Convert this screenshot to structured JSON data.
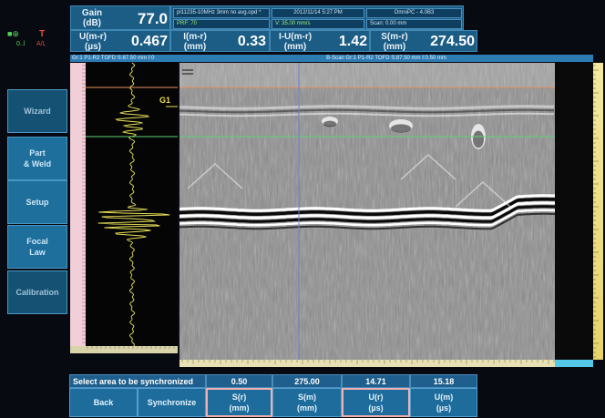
{
  "header": {
    "gain_label": "Gain",
    "gain_unit": "(dB)",
    "gain_value": "77.0",
    "ur_label": "U(m-r)",
    "ur_unit": "(µs)",
    "ur_value": "0.467",
    "im_label": "I(m-r)",
    "im_unit": "(mm)",
    "im_value": "0.33",
    "ium_label": "I-U(m-r)",
    "ium_unit": "(mm)",
    "ium_value": "1.42",
    "sm_label": "S(m-r)",
    "sm_unit": "(mm)",
    "sm_value": "274.50",
    "file_name": "pl11235-10MHz 3mm no avg.opd *",
    "prf": "PRF: 70",
    "velocity": "V: 35.00 mm/s",
    "datetime": "2012/11/14 5:27 PM",
    "app": "OmniPC - 4.0B3",
    "scan": "Scan: 0.00 mm"
  },
  "scan_titles": {
    "ascan": "Gr:1 P1-R2 TOFD S:87.50 mm I:0",
    "bscan": "B-Scan Gr:1 P1-R2 TOFD S:87.50 mm I:0.50 mm"
  },
  "gate_label": "G1",
  "side_menu": [
    {
      "label": "Wizard",
      "dark": true
    },
    {
      "label": "Part\n& Weld",
      "dark": false
    },
    {
      "label": "Setup",
      "dark": false
    },
    {
      "label": "Focal\nLaw",
      "dark": false
    },
    {
      "label": "Calibration",
      "dark": true
    }
  ],
  "bottom": {
    "sync_prompt": "Select area to be synchronized",
    "values": [
      "0.50",
      "275.00",
      "14.71",
      "15.18"
    ],
    "back": "Back",
    "synchronize": "Synchronize",
    "buttons": [
      {
        "label": "S(r)",
        "unit": "(mm)"
      },
      {
        "label": "S(m)",
        "unit": "(mm)"
      },
      {
        "label": "U(r)",
        "unit": "(µs)"
      },
      {
        "label": "U(m)",
        "unit": "(µs)"
      }
    ]
  },
  "colors": {
    "header_bg": "#1c5d86",
    "menu_bg": "#1e6f9c",
    "gate_orange": "#e89060",
    "gate_green": "#5fd27a",
    "cursor_blue": "#6f7fd8",
    "ascan_trace": "#e8e05a"
  }
}
